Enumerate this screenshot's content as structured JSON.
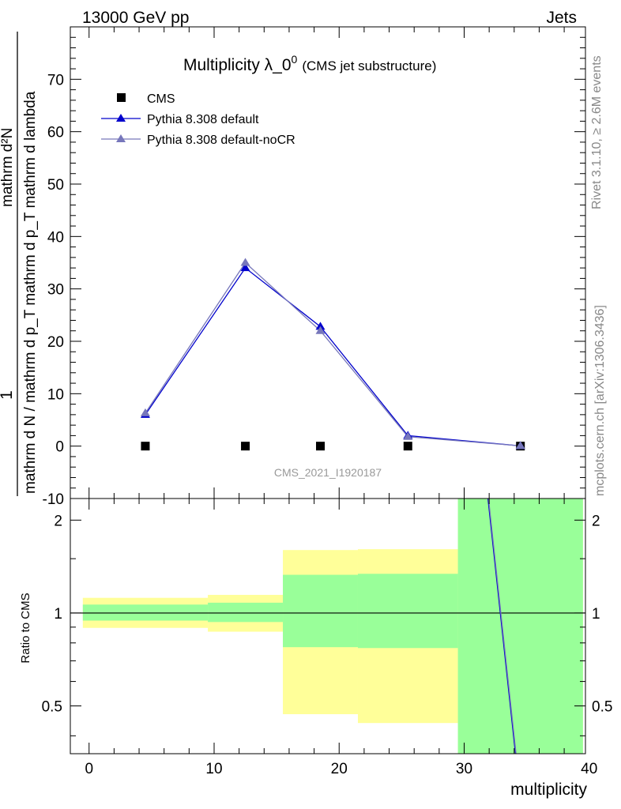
{
  "header": {
    "energy_label": "13000 GeV pp",
    "process_label": "Jets"
  },
  "side_labels": {
    "rivet": "Rivet 3.1.10, ≥ 2.6M events",
    "mcplots": "mcplots.cern.ch [arXiv:1306.3436]"
  },
  "chart_data": [
    {
      "type": "scatter",
      "title": "Multiplicity λ_0",
      "title_superscript": "0",
      "subtitle": "(CMS jet substructure)",
      "ylabel_lines": [
        "1",
        "mathrm d N / mathrm d p_T mathrm d p_T mathrm d lambda",
        "mathrm d²N"
      ],
      "xlabel": "multiplicity",
      "xlim": [
        -1.5,
        39.7
      ],
      "ylim": [
        -10,
        80
      ],
      "yticks": [
        -10,
        0,
        10,
        20,
        30,
        40,
        50,
        60,
        70
      ],
      "analysis_label": "CMS_2021_I1920187",
      "legend_position": "top-left",
      "series": [
        {
          "name": "CMS",
          "marker": "square",
          "color": "#000000",
          "points": [
            {
              "x": 4.5,
              "y": 0
            },
            {
              "x": 12.5,
              "y": 0
            },
            {
              "x": 18.5,
              "y": 0
            },
            {
              "x": 25.5,
              "y": 0
            },
            {
              "x": 34.5,
              "y": 0
            }
          ]
        },
        {
          "name": "Pythia 8.308 default",
          "marker": "triangle",
          "color": "#0000cc",
          "points": [
            {
              "x": 4.5,
              "y": 6.0
            },
            {
              "x": 12.5,
              "y": 34.0
            },
            {
              "x": 18.5,
              "y": 22.8
            },
            {
              "x": 25.5,
              "y": 2.0
            },
            {
              "x": 34.5,
              "y": 0.05
            }
          ]
        },
        {
          "name": "Pythia 8.308 default-noCR",
          "marker": "triangle",
          "color": "#7777bb",
          "points": [
            {
              "x": 4.5,
              "y": 6.3
            },
            {
              "x": 12.5,
              "y": 35.0
            },
            {
              "x": 18.5,
              "y": 22.0
            },
            {
              "x": 25.5,
              "y": 1.8
            },
            {
              "x": 34.5,
              "y": 0.05
            }
          ]
        }
      ]
    },
    {
      "type": "area",
      "ylabel": "Ratio to CMS",
      "xlabel": "multiplicity",
      "xlim": [
        -1.5,
        39.7
      ],
      "ylim": [
        0.35,
        2.35
      ],
      "ylog": true,
      "xticks": [
        0,
        10,
        20,
        30,
        40
      ],
      "yticks": [
        0.5,
        1,
        2
      ],
      "reference_line": 1,
      "bands": [
        {
          "x0": -0.5,
          "x1": 9.5,
          "stat_lo": 0.945,
          "stat_hi": 1.065,
          "tot_lo": 0.895,
          "tot_hi": 1.12
        },
        {
          "x0": 9.5,
          "x1": 15.5,
          "stat_lo": 0.935,
          "stat_hi": 1.08,
          "tot_lo": 0.87,
          "tot_hi": 1.145
        },
        {
          "x0": 15.5,
          "x1": 21.5,
          "stat_lo": 0.775,
          "stat_hi": 1.33,
          "tot_lo": 0.47,
          "tot_hi": 1.6
        },
        {
          "x0": 21.5,
          "x1": 29.5,
          "stat_lo": 0.77,
          "stat_hi": 1.34,
          "tot_lo": 0.44,
          "tot_hi": 1.61
        },
        {
          "x0": 29.5,
          "x1": 39.5,
          "stat_lo": 0.3,
          "stat_hi": 2.5,
          "tot_lo": 0.3,
          "tot_hi": 2.5
        }
      ],
      "series": [
        {
          "name": "Pythia 8.308 default",
          "color": "#0000cc",
          "points": [
            {
              "x": 31.9,
              "y": 2.35
            },
            {
              "x": 34.1,
              "y": 0.35
            }
          ]
        },
        {
          "name": "Pythia 8.308 default-noCR",
          "color": "#7777bb",
          "points": [
            {
              "x": 31.95,
              "y": 2.35
            },
            {
              "x": 34.15,
              "y": 0.35
            }
          ]
        }
      ]
    }
  ],
  "colors": {
    "stat_band": "#99ff99",
    "total_band": "#ffff99",
    "axis": "#000000",
    "side_text": "#888888",
    "analysis_text": "#999999"
  }
}
